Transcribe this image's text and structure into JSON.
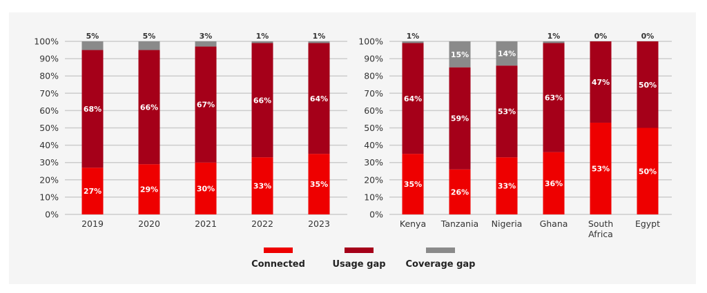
{
  "colors": {
    "connected": "#ee0000",
    "usage_gap": "#a50019",
    "coverage_gap": "#8a8a8a",
    "grid": "#cccccc",
    "panel": "#f5f5f5"
  },
  "legend": [
    {
      "label": "Connected",
      "color": "#ee0000"
    },
    {
      "label": "Usage gap",
      "color": "#a50019"
    },
    {
      "label": "Coverage gap",
      "color": "#8a8a8a"
    }
  ],
  "chart_data": [
    {
      "type": "bar",
      "stacked": true,
      "categories": [
        "2019",
        "2020",
        "2021",
        "2022",
        "2023"
      ],
      "series": [
        {
          "name": "Connected",
          "values": [
            27,
            29,
            30,
            33,
            35
          ]
        },
        {
          "name": "Usage gap",
          "values": [
            68,
            66,
            67,
            66,
            64
          ]
        },
        {
          "name": "Coverage gap",
          "values": [
            5,
            5,
            3,
            1,
            1
          ]
        }
      ],
      "yticks": [
        "0%",
        "10%",
        "20%",
        "30%",
        "40%",
        "50%",
        "60%",
        "70%",
        "80%",
        "90%",
        "100%"
      ],
      "ylim": [
        0,
        100
      ],
      "grid": true,
      "legend_placement": "bottom"
    },
    {
      "type": "bar",
      "stacked": true,
      "categories": [
        "Kenya",
        "Tanzania",
        "Nigeria",
        "Ghana",
        "South Africa",
        "Egypt"
      ],
      "series": [
        {
          "name": "Connected",
          "values": [
            35,
            26,
            33,
            36,
            53,
            50
          ]
        },
        {
          "name": "Usage gap",
          "values": [
            64,
            59,
            53,
            63,
            47,
            50
          ]
        },
        {
          "name": "Coverage gap",
          "values": [
            1,
            15,
            14,
            1,
            0,
            0
          ]
        }
      ],
      "yticks": [
        "0%",
        "10%",
        "20%",
        "30%",
        "40%",
        "50%",
        "60%",
        "70%",
        "80%",
        "90%",
        "100%"
      ],
      "ylim": [
        0,
        100
      ],
      "grid": true,
      "legend_placement": "bottom"
    }
  ]
}
